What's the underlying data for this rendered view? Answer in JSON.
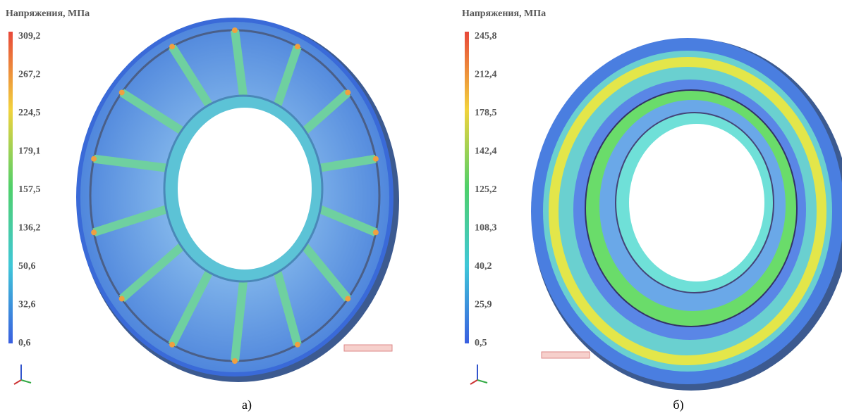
{
  "panels": [
    {
      "legend_title": "Напряжения, МПа",
      "scale_labels": [
        "309,2",
        "267,2",
        "224,5",
        "179,1",
        "157,5",
        "136,2",
        "50,6",
        "32,6",
        "0,6"
      ],
      "caption": "а)"
    },
    {
      "legend_title": "Напряжения, МПа",
      "scale_labels": [
        "245,8",
        "212,4",
        "178,5",
        "142,4",
        "125,2",
        "108,3",
        "40,2",
        "25,9",
        "0,5"
      ],
      "caption": "б)"
    }
  ]
}
